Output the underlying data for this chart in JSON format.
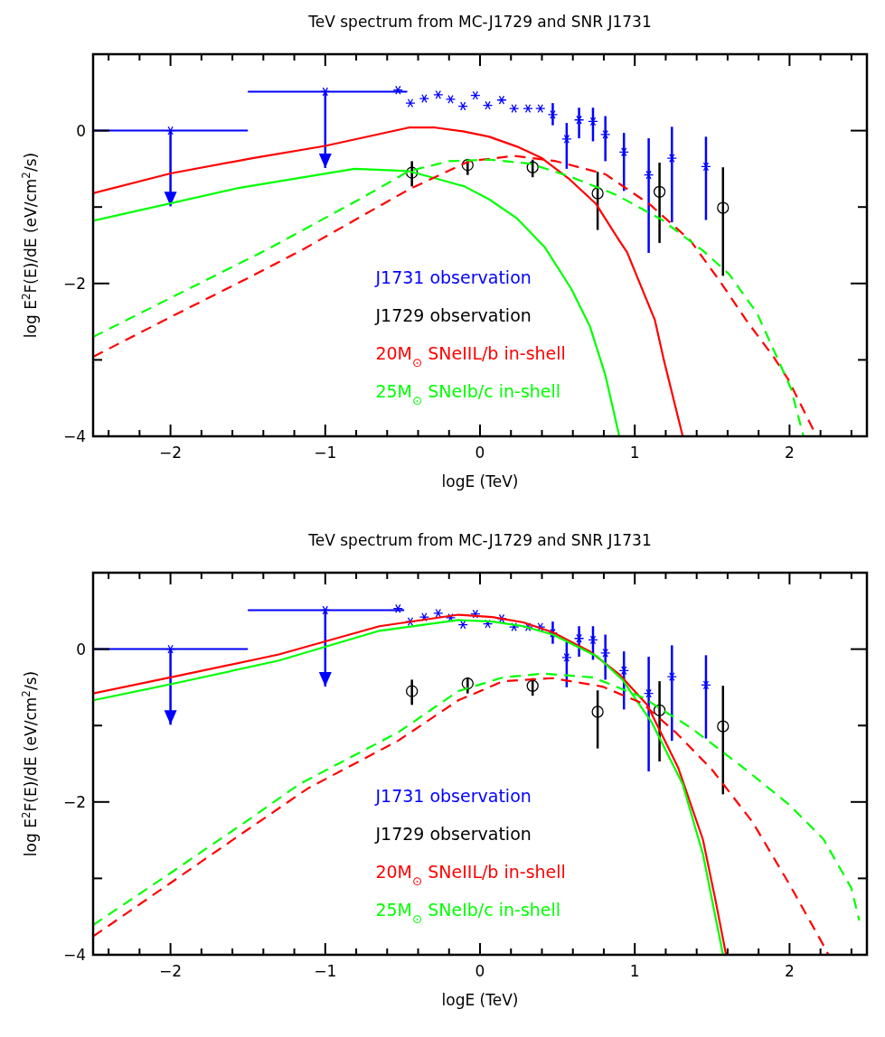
{
  "chart_data": [
    {
      "type": "line",
      "title": "TeV spectrum from MC-J1729 and SNR J1731",
      "xlabel": "logE (TeV)",
      "ylabel": "log E$^{2}$F(E)/dE (eV/cm$^{2}$/s)",
      "xlim": [
        -2.5,
        2.5
      ],
      "ylim": [
        -4,
        1
      ],
      "xticks": [
        {
          "value": -2.4,
          "label": null
        },
        {
          "value": -2.2,
          "label": null
        },
        -2,
        {
          "value": -1.8,
          "label": null
        },
        {
          "value": -1.6,
          "label": null
        },
        {
          "value": -1.4,
          "label": null
        },
        {
          "value": -1.2,
          "label": null
        },
        -1,
        {
          "value": -0.8,
          "label": null
        },
        {
          "value": -0.6,
          "label": null
        },
        {
          "value": -0.4,
          "label": null
        },
        {
          "value": -0.2,
          "label": null
        },
        0,
        {
          "value": 0.2,
          "label": null
        },
        {
          "value": 0.4,
          "label": null
        },
        {
          "value": 0.6,
          "label": null
        },
        {
          "value": 0.8,
          "label": null
        },
        1,
        {
          "value": 1.2,
          "label": null
        },
        {
          "value": 1.4,
          "label": null
        },
        {
          "value": 1.6,
          "label": null
        },
        {
          "value": 1.8,
          "label": null
        },
        2,
        {
          "value": 2.2,
          "label": null
        },
        {
          "value": 2.4,
          "label": null
        }
      ],
      "yticks": [
        -4,
        {
          "value": -3,
          "label": null
        },
        -2,
        {
          "value": -1,
          "label": null
        },
        0,
        {
          "value": 1,
          "label": null
        }
      ],
      "grid": false,
      "legend": "bottom",
      "series": [
        {
          "name": "J1731 observation",
          "type": "scatter",
          "color": "#0000ff",
          "marker": "cross",
          "x": [
            -0.53,
            -0.45,
            -0.36,
            -0.27,
            -0.19,
            -0.11,
            -0.03,
            0.05,
            0.14,
            0.22,
            0.31,
            0.39,
            0.47,
            0.56,
            0.64,
            0.73,
            0.81,
            0.93,
            1.09,
            1.24,
            1.46
          ],
          "values": [
            0.53,
            0.36,
            0.42,
            0.47,
            0.41,
            0.32,
            0.46,
            0.33,
            0.4,
            0.29,
            0.29,
            0.29,
            0.21,
            -0.11,
            0.14,
            0.12,
            -0.05,
            -0.28,
            -0.58,
            -0.36,
            -0.47
          ],
          "errors": [
            null,
            null,
            null,
            null,
            null,
            null,
            null,
            null,
            null,
            null,
            null,
            null,
            [
              0.07,
              0.36
            ],
            [
              -0.5,
              0.1
            ],
            [
              -0.1,
              0.3
            ],
            [
              -0.14,
              0.3
            ],
            [
              -0.4,
              0.19
            ],
            [
              -0.79,
              -0.03
            ],
            [
              -1.6,
              -0.1
            ],
            [
              -1.2,
              0.05
            ],
            [
              -1.17,
              -0.08
            ]
          ]
        },
        {
          "type": "scatter",
          "color": "#0000ff",
          "marker": "cross",
          "x": [
            -2,
            -1
          ],
          "values": [
            0,
            0.51
          ],
          "errors": [
            [
              -0.99,
              0
            ],
            [
              -0.49,
              0.51
            ]
          ],
          "xerrors": [
            [
              -2.5,
              -1.5
            ],
            [
              -1.5,
              -0.47
            ]
          ]
        },
        {
          "name": "J1729 observation",
          "type": "scatter",
          "color": "#000000",
          "marker": "circle",
          "x": [
            -0.44,
            -0.08,
            0.34,
            0.76,
            1.16,
            1.57
          ],
          "values": [
            -0.55,
            -0.45,
            -0.48,
            -0.82,
            -0.8,
            -1.01
          ],
          "errors": [
            [
              -0.73,
              -0.4
            ],
            [
              -0.58,
              -0.37
            ],
            [
              -0.61,
              -0.38
            ],
            [
              -1.3,
              -0.54
            ],
            [
              -1.47,
              -0.42
            ],
            [
              -1.9,
              -0.48
            ]
          ]
        },
        {
          "name": "20M$_{⊙}$ SNeIIL/b in-shell",
          "color": "#ff0000",
          "line_style": "solid",
          "x": [
            -2.5,
            -2,
            -1.47,
            -1,
            -0.46,
            -0.29,
            -0.11,
            0.06,
            0.24,
            0.4,
            0.58,
            0.75,
            0.9,
            0.95,
            1.13,
            1.19,
            1.31
          ],
          "values": [
            -0.82,
            -0.56,
            -0.36,
            -0.2,
            0.04,
            0.04,
            -0.01,
            -0.08,
            -0.21,
            -0.36,
            -0.64,
            -0.96,
            -1.44,
            -1.59,
            -2.48,
            -3.02,
            -4
          ]
        },
        {
          "name": "25M$_{⊙}$ SNeIb/c in-shell",
          "color": "#00ff00",
          "line_style": "solid",
          "x": [
            -2.5,
            -1.56,
            -0.81,
            -0.46,
            -0.26,
            -0.1,
            0.06,
            0.24,
            0.42,
            0.59,
            0.71,
            0.81,
            0.9
          ],
          "values": [
            -1.18,
            -0.75,
            -0.5,
            -0.53,
            -0.64,
            -0.73,
            -0.9,
            -1.15,
            -1.53,
            -2.07,
            -2.56,
            -3.2,
            -4
          ]
        },
        {
          "color": "#ff0000",
          "line_style": "dashed",
          "x": [
            -2.5,
            -2,
            -1.5,
            -1.14,
            -0.46,
            -0.07,
            0.22,
            0.49,
            0.81,
            1.1,
            1.36,
            1.55,
            1.72,
            1.9,
            1.99,
            2.15,
            2.18
          ],
          "values": [
            -2.96,
            -2.44,
            -1.93,
            -1.55,
            -0.77,
            -0.4,
            -0.33,
            -0.4,
            -0.57,
            -0.97,
            -1.44,
            -1.97,
            -2.48,
            -2.97,
            -3.25,
            -3.9,
            -4
          ]
        },
        {
          "color": "#00ff00",
          "line_style": "dashed",
          "x": [
            -2.5,
            -2,
            -1.37,
            -0.78,
            -0.46,
            -0.2,
            0.06,
            0.32,
            0.58,
            0.88,
            1.17,
            1.44,
            1.61,
            1.79,
            1.94,
            2.01,
            2.09
          ],
          "values": [
            -2.7,
            -2.19,
            -1.55,
            -0.9,
            -0.53,
            -0.4,
            -0.38,
            -0.43,
            -0.6,
            -0.84,
            -1.16,
            -1.57,
            -1.88,
            -2.39,
            -3.06,
            -3.38,
            -4
          ]
        }
      ]
    },
    {
      "type": "line",
      "title": "TeV spectrum from MC-J1729 and SNR J1731",
      "xlabel": "logE (TeV)",
      "ylabel": "log E$^{2}$F(E)/dE (eV/cm$^{2}$/s)",
      "xlim": [
        -2.5,
        2.5
      ],
      "ylim": [
        -4,
        1
      ],
      "xticks": [
        {
          "value": -2.4,
          "label": null
        },
        {
          "value": -2.2,
          "label": null
        },
        -2,
        {
          "value": -1.8,
          "label": null
        },
        {
          "value": -1.6,
          "label": null
        },
        {
          "value": -1.4,
          "label": null
        },
        {
          "value": -1.2,
          "label": null
        },
        -1,
        {
          "value": -0.8,
          "label": null
        },
        {
          "value": -0.6,
          "label": null
        },
        {
          "value": -0.4,
          "label": null
        },
        {
          "value": -0.2,
          "label": null
        },
        0,
        {
          "value": 0.2,
          "label": null
        },
        {
          "value": 0.4,
          "label": null
        },
        {
          "value": 0.6,
          "label": null
        },
        {
          "value": 0.8,
          "label": null
        },
        1,
        {
          "value": 1.2,
          "label": null
        },
        {
          "value": 1.4,
          "label": null
        },
        {
          "value": 1.6,
          "label": null
        },
        {
          "value": 1.8,
          "label": null
        },
        2,
        {
          "value": 2.2,
          "label": null
        },
        {
          "value": 2.4,
          "label": null
        }
      ],
      "yticks": [
        -4,
        {
          "value": -3,
          "label": null
        },
        -2,
        {
          "value": -1,
          "label": null
        },
        0,
        {
          "value": 1,
          "label": null
        }
      ],
      "grid": false,
      "legend": "bottom",
      "series": [
        {
          "name": "J1731 observation",
          "type": "scatter",
          "color": "#0000ff",
          "marker": "cross",
          "x": [
            -0.53,
            -0.45,
            -0.36,
            -0.27,
            -0.19,
            -0.11,
            -0.03,
            0.05,
            0.14,
            0.22,
            0.31,
            0.39,
            0.47,
            0.56,
            0.64,
            0.73,
            0.81,
            0.93,
            1.09,
            1.24,
            1.46
          ],
          "values": [
            0.53,
            0.36,
            0.42,
            0.47,
            0.41,
            0.32,
            0.46,
            0.33,
            0.4,
            0.29,
            0.29,
            0.29,
            0.21,
            -0.11,
            0.14,
            0.12,
            -0.05,
            -0.28,
            -0.58,
            -0.36,
            -0.47
          ],
          "errors": [
            null,
            null,
            null,
            null,
            null,
            null,
            null,
            null,
            null,
            null,
            null,
            null,
            [
              0.07,
              0.36
            ],
            [
              -0.5,
              0.1
            ],
            [
              -0.1,
              0.3
            ],
            [
              -0.14,
              0.3
            ],
            [
              -0.4,
              0.19
            ],
            [
              -0.79,
              -0.03
            ],
            [
              -1.6,
              -0.1
            ],
            [
              -1.2,
              0.05
            ],
            [
              -1.17,
              -0.08
            ]
          ]
        },
        {
          "type": "scatter",
          "color": "#0000ff",
          "marker": "cross",
          "x": [
            -2,
            -1
          ],
          "values": [
            0,
            0.51
          ],
          "errors": [
            [
              -0.99,
              0
            ],
            [
              -0.49,
              0.51
            ]
          ],
          "xerrors": [
            [
              -2.5,
              -1.5
            ],
            [
              -1.5,
              -0.49
            ]
          ]
        },
        {
          "name": "J1729 observation",
          "type": "scatter",
          "color": "#000000",
          "marker": "circle",
          "x": [
            -0.44,
            -0.08,
            0.34,
            0.76,
            1.16,
            1.57
          ],
          "values": [
            -0.55,
            -0.45,
            -0.48,
            -0.82,
            -0.8,
            -1.01
          ],
          "errors": [
            [
              -0.73,
              -0.4
            ],
            [
              -0.58,
              -0.37
            ],
            [
              -0.61,
              -0.38
            ],
            [
              -1.3,
              -0.54
            ],
            [
              -1.47,
              -0.42
            ],
            [
              -1.9,
              -0.48
            ]
          ]
        },
        {
          "name": "20M$_{⊙}$ SNeIIL/b in-shell",
          "color": "#ff0000",
          "line_style": "solid",
          "x": [
            -2.5,
            -2,
            -1.3,
            -0.65,
            -0.14,
            0.08,
            0.28,
            0.47,
            0.71,
            0.9,
            1.08,
            1.28,
            1.44,
            1.52,
            1.59
          ],
          "values": [
            -0.58,
            -0.37,
            -0.07,
            0.3,
            0.45,
            0.42,
            0.35,
            0.22,
            -0.03,
            -0.33,
            -0.73,
            -1.55,
            -2.49,
            -3.27,
            -4
          ]
        },
        {
          "name": "25M$_{⊙}$ SNeIb/c in-shell",
          "color": "#00ff00",
          "line_style": "solid",
          "x": [
            -2.5,
            -2,
            -1.3,
            -0.65,
            -0.14,
            0.08,
            0.28,
            0.47,
            0.76,
            0.92,
            1.11,
            1.31,
            1.44,
            1.57
          ],
          "values": [
            -0.67,
            -0.46,
            -0.15,
            0.24,
            0.38,
            0.36,
            0.3,
            0.19,
            -0.1,
            -0.4,
            -0.96,
            -1.77,
            -2.68,
            -4
          ]
        },
        {
          "color": "#ff0000",
          "line_style": "dashed",
          "x": [
            -2.5,
            -2,
            -1.5,
            -1.11,
            -0.53,
            -0.14,
            0.15,
            0.47,
            0.79,
            1.05,
            1.27,
            1.5,
            1.76,
            2,
            2.24,
            2.25
          ],
          "values": [
            -3.76,
            -3.06,
            -2.36,
            -1.82,
            -1.2,
            -0.67,
            -0.42,
            -0.38,
            -0.49,
            -0.71,
            -1.1,
            -1.58,
            -2.26,
            -3.08,
            -3.95,
            -4
          ]
        },
        {
          "color": "#00ff00",
          "line_style": "dashed",
          "x": [
            -2.5,
            -2,
            -1.5,
            -1.17,
            -0.53,
            -0.14,
            0.15,
            0.41,
            0.73,
            1.05,
            1.37,
            1.72,
            2,
            2.22,
            2.4,
            2.45
          ],
          "values": [
            -3.61,
            -2.93,
            -2.24,
            -1.77,
            -1.09,
            -0.55,
            -0.37,
            -0.32,
            -0.37,
            -0.63,
            -1.04,
            -1.58,
            -2.04,
            -2.49,
            -3.13,
            -3.55
          ]
        }
      ]
    }
  ]
}
